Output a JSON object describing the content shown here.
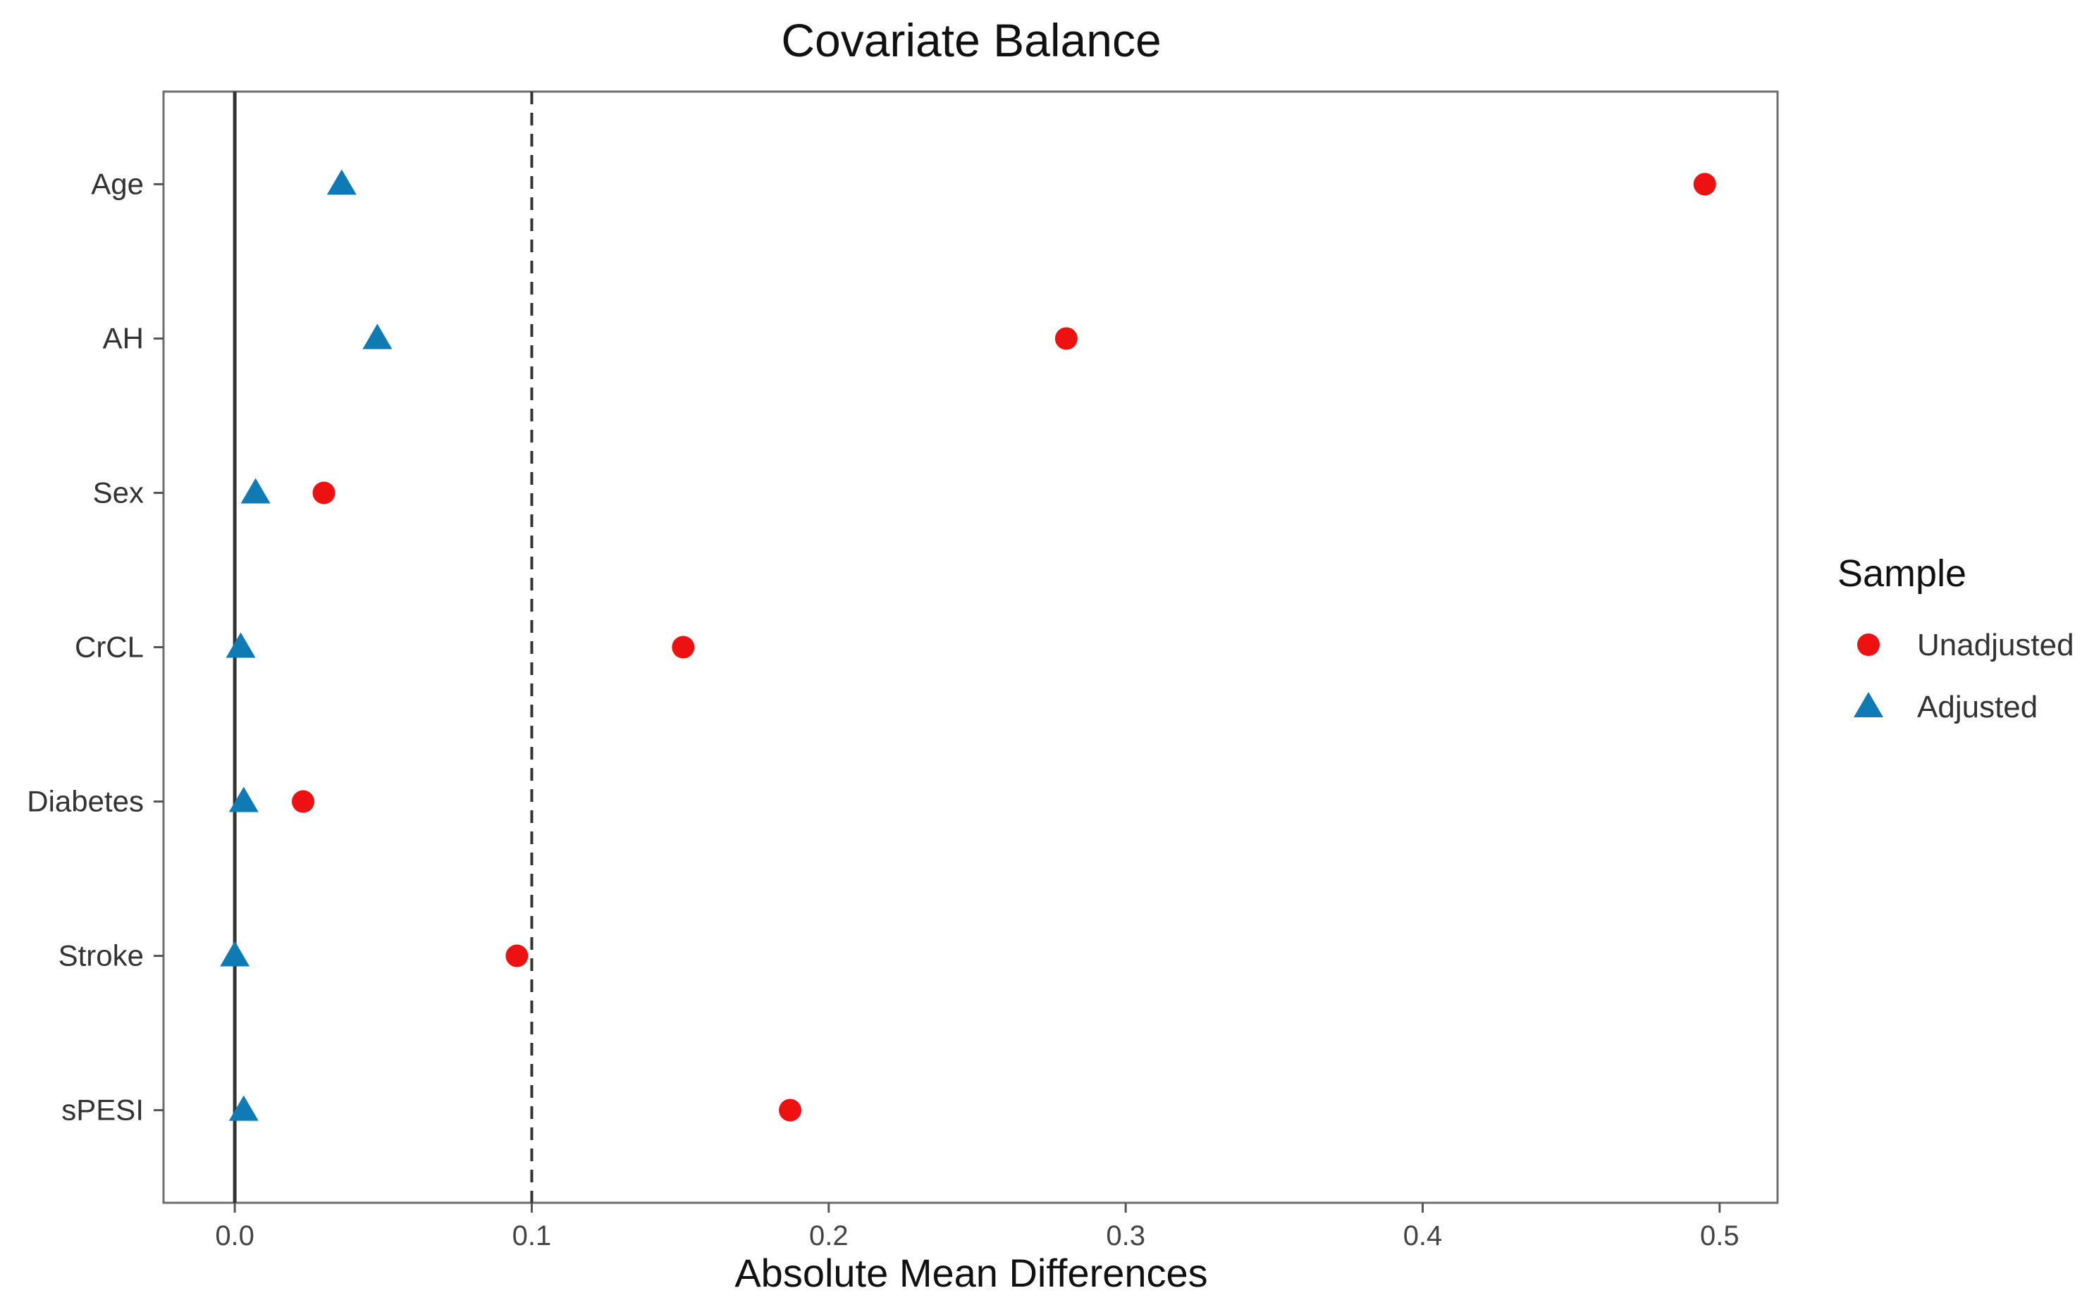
{
  "chart_data": {
    "type": "scatter",
    "title": "Covariate Balance",
    "xlabel": "Absolute Mean Differences",
    "ylabel": "",
    "xlim": [
      -0.024,
      0.5195
    ],
    "x_ticks": [
      "0.0",
      "0.1",
      "0.2",
      "0.3",
      "0.4",
      "0.5"
    ],
    "x_tick_values": [
      0,
      0.1,
      0.2,
      0.3,
      0.4,
      0.5
    ],
    "categories": [
      "Age",
      "AH",
      "Sex",
      "CrCL",
      "Diabetes",
      "Stroke",
      "sPESI"
    ],
    "reference_lines": [
      {
        "x": 0,
        "style": "solid"
      },
      {
        "x": 0.1,
        "style": "dashed"
      }
    ],
    "legend_title": "Sample",
    "legend_position": "right",
    "grid": false,
    "series": [
      {
        "name": "Unadjusted",
        "marker": "circle",
        "color": "#ee1111",
        "values": [
          0.495,
          0.28,
          0.03,
          0.151,
          0.023,
          0.095,
          0.187
        ]
      },
      {
        "name": "Adjusted",
        "marker": "triangle",
        "color": "#0f7bb5",
        "values": [
          0.036,
          0.048,
          0.007,
          0.002,
          0.003,
          0.0,
          0.003
        ]
      }
    ]
  }
}
